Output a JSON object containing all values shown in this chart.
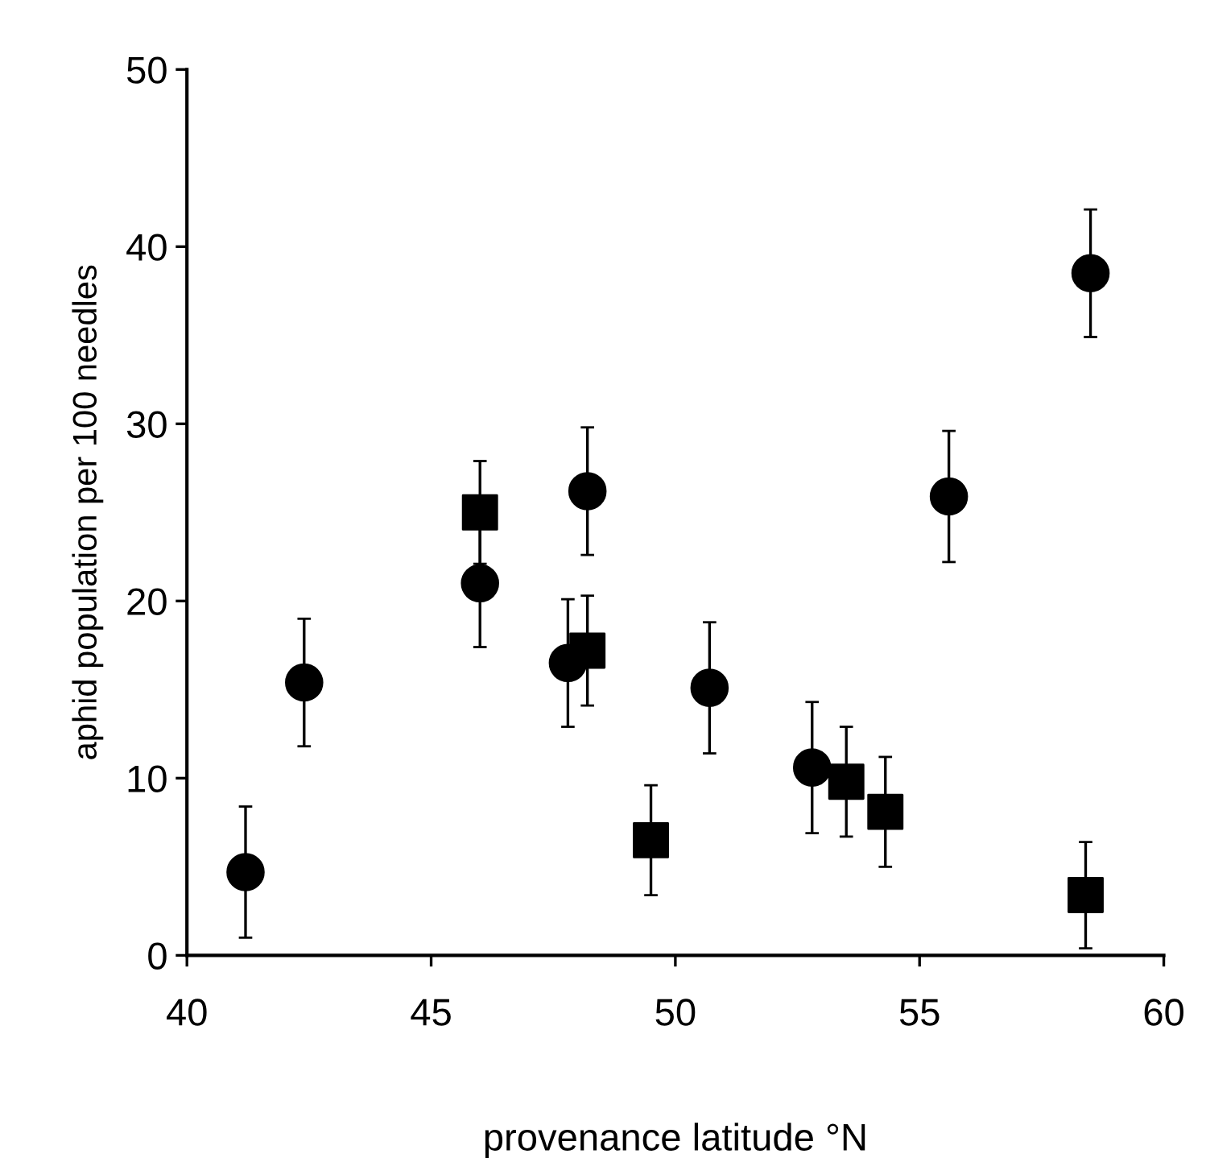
{
  "chart_data": {
    "type": "scatter",
    "xlabel": "provenance latitude °N",
    "ylabel": "aphid population per 100 needles",
    "xlim": [
      40,
      60
    ],
    "xticks": [
      40,
      45,
      50,
      55,
      60
    ],
    "ylim": [
      0,
      50
    ],
    "yticks": [
      0,
      10,
      20,
      30,
      40,
      50
    ],
    "grid": false,
    "legend": false,
    "series": [
      {
        "color": "#000000",
        "marker": "circle",
        "x": [
          41.2,
          42.4,
          46.0,
          48.2,
          47.8,
          50.7,
          52.8,
          55.6,
          58.5
        ],
        "values": [
          4.7,
          15.4,
          21.0,
          26.2,
          16.5,
          15.1,
          10.6,
          25.9,
          38.5
        ],
        "errors": [
          3.7,
          3.6,
          3.6,
          3.6,
          3.6,
          3.7,
          3.7,
          3.7,
          3.6
        ]
      },
      {
        "color": "#000000",
        "marker": "square",
        "x": [
          46.0,
          48.2,
          49.5,
          53.5,
          54.3,
          58.4
        ],
        "values": [
          25.0,
          17.2,
          6.5,
          9.8,
          8.1,
          3.4
        ],
        "errors": [
          2.9,
          3.1,
          3.1,
          3.1,
          3.1,
          3.0
        ]
      }
    ]
  }
}
